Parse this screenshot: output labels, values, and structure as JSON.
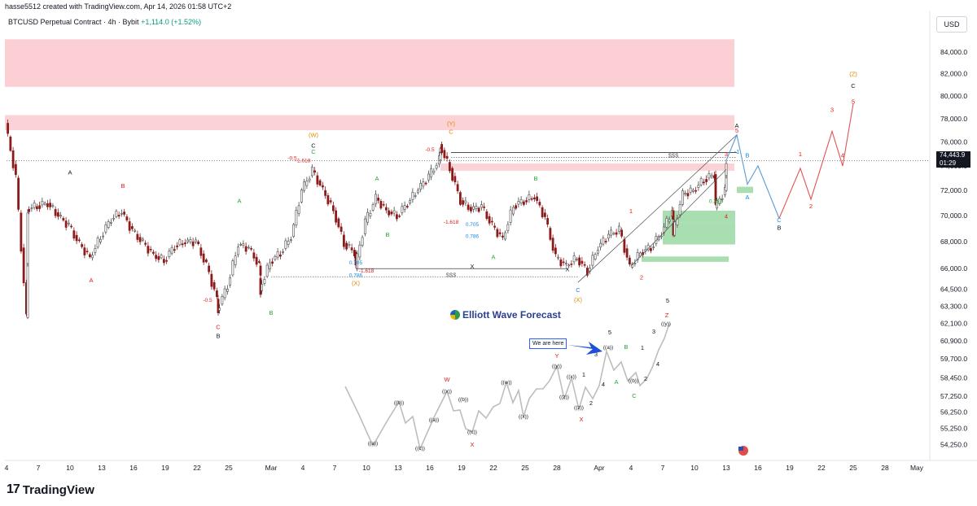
{
  "header": {
    "top_line": "hasse5512 created with TradingView.com, Apr 14, 2026 01:58 UTC+2",
    "symbol_title": "BTCUSD Perpetual Contract · 4h · Bybit",
    "change": "+1,114.0 (+1.52%)"
  },
  "currency_button": "USD",
  "branding": {
    "logo_mark": "17",
    "logo_text": "TradingView",
    "ewf_text": "Elliott Wave Forecast",
    "we_are_here": "We are here"
  },
  "price_tag": {
    "price": "74,443.9",
    "countdown": "01:29"
  },
  "colors": {
    "up": "#089981",
    "down": "#8b1a1a",
    "sell_zone": "#f7a8b0",
    "buy_zone": "#62c46f",
    "path_blue": "#5b9bd5",
    "path_red": "#e05555",
    "label_red": "#e01b1b",
    "label_green": "#27a534",
    "label_orange": "#e08a00",
    "label_blue": "#1e88e5"
  },
  "chart_data": {
    "type": "candlestick",
    "title": "BTCUSD Perpetual Contract · 4h · Bybit",
    "ylim": [
      53500,
      86000
    ],
    "y_scale": "log",
    "y_ticks": [
      "84,000.0",
      "82,000.0",
      "80,000.0",
      "78,000.0",
      "76,000.0",
      "74,000.0",
      "72,000.0",
      "70,000.0",
      "68,000.0",
      "66,000.0",
      "64,500.0",
      "63,300.0",
      "62,100.0",
      "60,900.0",
      "59,700.0",
      "58,450.0",
      "57,250.0",
      "56,250.0",
      "55,250.0",
      "54,250.0"
    ],
    "y_tick_values": [
      84000,
      82000,
      80000,
      78000,
      76000,
      74000,
      72000,
      70000,
      68000,
      66000,
      64500,
      63300,
      62100,
      60900,
      59700,
      58450,
      57250,
      56250,
      55250,
      54250
    ],
    "x_ticks": [
      "4",
      "7",
      "10",
      "13",
      "16",
      "19",
      "22",
      "25",
      "Mar",
      "4",
      "7",
      "10",
      "13",
      "16",
      "19",
      "22",
      "25",
      "28",
      "Apr",
      "4",
      "7",
      "10",
      "13",
      "16",
      "19",
      "22",
      "25",
      "28",
      "May"
    ],
    "x_tick_dates": [
      "2026-02-04",
      "2026-02-07",
      "2026-02-10",
      "2026-02-13",
      "2026-02-16",
      "2026-02-19",
      "2026-02-22",
      "2026-02-25",
      "2026-03-01",
      "2026-03-04",
      "2026-03-07",
      "2026-03-10",
      "2026-03-13",
      "2026-03-16",
      "2026-03-19",
      "2026-03-22",
      "2026-03-25",
      "2026-03-28",
      "2026-04-01",
      "2026-04-04",
      "2026-04-07",
      "2026-04-10",
      "2026-04-13",
      "2026-04-16",
      "2026-04-19",
      "2026-04-22",
      "2026-04-25",
      "2026-04-28",
      "2026-05-01"
    ],
    "price_path": [
      [
        "2026-02-04",
        77600
      ],
      [
        "2026-02-05",
        73000
      ],
      [
        "2026-02-06",
        62500
      ],
      [
        "2026-02-06",
        70500
      ],
      [
        "2026-02-07",
        70800
      ],
      [
        "2026-02-08",
        71000
      ],
      [
        "2026-02-09",
        70000
      ],
      [
        "2026-02-10",
        69200
      ],
      [
        "2026-02-11",
        67800
      ],
      [
        "2026-02-12",
        66800
      ],
      [
        "2026-02-13",
        68400
      ],
      [
        "2026-02-14",
        69800
      ],
      [
        "2026-02-15",
        70300
      ],
      [
        "2026-02-16",
        68800
      ],
      [
        "2026-02-17",
        67900
      ],
      [
        "2026-02-18",
        67000
      ],
      [
        "2026-02-19",
        66600
      ],
      [
        "2026-02-20",
        67700
      ],
      [
        "2026-02-21",
        68000
      ],
      [
        "2026-02-22",
        68000
      ],
      [
        "2026-02-23",
        66200
      ],
      [
        "2026-02-24",
        63800
      ],
      [
        "2026-02-24",
        63000
      ],
      [
        "2026-02-25",
        64800
      ],
      [
        "2026-02-26",
        67800
      ],
      [
        "2026-02-27",
        67500
      ],
      [
        "2026-02-28",
        66200
      ],
      [
        "2026-02-28",
        64400
      ],
      [
        "2026-03-01",
        66500
      ],
      [
        "2026-03-02",
        67200
      ],
      [
        "2026-03-03",
        68400
      ],
      [
        "2026-03-04",
        72000
      ],
      [
        "2026-03-05",
        73600
      ],
      [
        "2026-03-06",
        72000
      ],
      [
        "2026-03-07",
        70400
      ],
      [
        "2026-03-08",
        67900
      ],
      [
        "2026-03-09",
        67200
      ],
      [
        "2026-03-09",
        66000
      ],
      [
        "2026-03-10",
        69500
      ],
      [
        "2026-03-11",
        71400
      ],
      [
        "2026-03-12",
        70400
      ],
      [
        "2026-03-13",
        70000
      ],
      [
        "2026-03-14",
        71000
      ],
      [
        "2026-03-15",
        72100
      ],
      [
        "2026-03-16",
        73100
      ],
      [
        "2026-03-17",
        74500
      ],
      [
        "2026-03-17",
        75800
      ],
      [
        "2026-03-18",
        73800
      ],
      [
        "2026-03-19",
        71200
      ],
      [
        "2026-03-20",
        70500
      ],
      [
        "2026-03-21",
        70700
      ],
      [
        "2026-03-22",
        69200
      ],
      [
        "2026-03-23",
        68200
      ],
      [
        "2026-03-24",
        70800
      ],
      [
        "2026-03-25",
        71200
      ],
      [
        "2026-03-26",
        71500
      ],
      [
        "2026-03-27",
        69800
      ],
      [
        "2026-03-28",
        66800
      ],
      [
        "2026-03-29",
        66200
      ],
      [
        "2026-03-30",
        66800
      ],
      [
        "2026-03-31",
        65800
      ],
      [
        "2026-04-01",
        67600
      ],
      [
        "2026-04-02",
        68500
      ],
      [
        "2026-04-03",
        68900
      ],
      [
        "2026-04-04",
        66100
      ],
      [
        "2026-04-05",
        67200
      ],
      [
        "2026-04-06",
        67600
      ],
      [
        "2026-04-07",
        68700
      ],
      [
        "2026-04-08",
        70400
      ],
      [
        "2026-04-08",
        68500
      ],
      [
        "2026-04-09",
        71700
      ],
      [
        "2026-04-10",
        72000
      ],
      [
        "2026-04-11",
        72900
      ],
      [
        "2026-04-12",
        73300
      ],
      [
        "2026-04-12",
        70600
      ],
      [
        "2026-04-13",
        72000
      ],
      [
        "2026-04-13",
        74443.9
      ]
    ],
    "last_price": 74443.9,
    "zones": [
      {
        "kind": "sell",
        "from": 80800,
        "to": 85200
      },
      {
        "kind": "sell",
        "from": 77000,
        "to": 78300
      },
      {
        "kind": "sell",
        "from": 73600,
        "to": 74200
      },
      {
        "kind": "buy",
        "from": 67800,
        "to": 69500
      },
      {
        "kind": "buy",
        "from": 69500,
        "to": 70400
      },
      {
        "kind": "buy",
        "from": 66500,
        "to": 66900
      },
      {
        "kind": "buy",
        "from": 71800,
        "to": 72300
      }
    ],
    "projection_blue": [
      [
        "2026-04-13",
        74443.9
      ],
      [
        "2026-04-14",
        76600
      ],
      [
        "2026-04-15",
        72500
      ],
      [
        "2026-04-16",
        74000
      ],
      [
        "2026-04-18",
        69800
      ]
    ],
    "projection_red": [
      [
        "2026-04-18",
        69800
      ],
      [
        "2026-04-20",
        73800
      ],
      [
        "2026-04-21",
        71300
      ],
      [
        "2026-04-23",
        76900
      ],
      [
        "2026-04-24",
        74000
      ],
      [
        "2026-04-25",
        79300
      ]
    ],
    "labels": [
      {
        "text": "A",
        "color": "black",
        "date": "2026-02-10",
        "price": 73300
      },
      {
        "text": "B",
        "color": "red",
        "date": "2026-02-15",
        "price": 72200
      },
      {
        "text": "A",
        "color": "red",
        "date": "2026-02-12",
        "price": 65000
      },
      {
        "text": "-0.5",
        "color": "red",
        "date": "2026-02-23",
        "price": 63600
      },
      {
        "text": "C",
        "color": "red",
        "date": "2026-02-24",
        "price": 61700
      },
      {
        "text": "B",
        "color": "black",
        "date": "2026-02-24",
        "price": 61100
      },
      {
        "text": "A",
        "color": "green",
        "date": "2026-02-26",
        "price": 71000
      },
      {
        "text": "B",
        "color": "green",
        "date": "2026-03-01",
        "price": 62700
      },
      {
        "text": "(W)",
        "color": "orange",
        "date": "2026-03-05",
        "price": 76400
      },
      {
        "text": "C",
        "color": "black",
        "date": "2026-03-05",
        "price": 75500
      },
      {
        "text": "C",
        "color": "green",
        "date": "2026-03-05",
        "price": 75000
      },
      {
        "text": "-0.5",
        "color": "red",
        "date": "2026-03-03",
        "price": 74500
      },
      {
        "text": "-1.618",
        "color": "red",
        "date": "2026-03-04",
        "price": 74300
      },
      {
        "text": "A",
        "color": "green",
        "date": "2026-03-11",
        "price": 72800
      },
      {
        "text": "B",
        "color": "green",
        "date": "2026-03-12",
        "price": 68400
      },
      {
        "text": "0.705",
        "color": "blue",
        "date": "2026-03-09",
        "price": 66300
      },
      {
        "text": "-1.618",
        "color": "red",
        "date": "2026-03-10",
        "price": 65700
      },
      {
        "text": "0.786",
        "color": "blue",
        "date": "2026-03-09",
        "price": 65400
      },
      {
        "text": "(X)",
        "color": "orange",
        "date": "2026-03-09",
        "price": 64800
      },
      {
        "text": "(Y)",
        "color": "orange",
        "date": "2026-03-18",
        "price": 77400
      },
      {
        "text": "C",
        "color": "orange",
        "date": "2026-03-18",
        "price": 76700
      },
      {
        "text": "-0.5",
        "color": "red",
        "date": "2026-03-16",
        "price": 75200
      },
      {
        "text": "-1.618",
        "color": "red",
        "date": "2026-03-18",
        "price": 69400
      },
      {
        "text": "0.705",
        "color": "blue",
        "date": "2026-03-20",
        "price": 69200
      },
      {
        "text": "0.786",
        "color": "blue",
        "date": "2026-03-20",
        "price": 68300
      },
      {
        "text": "A",
        "color": "green",
        "date": "2026-03-22",
        "price": 66700
      },
      {
        "text": "B",
        "color": "green",
        "date": "2026-03-26",
        "price": 72800
      },
      {
        "text": "X",
        "color": "black",
        "date": "2026-03-20",
        "price": 66000
      },
      {
        "text": "X",
        "color": "black",
        "date": "2026-03-29",
        "price": 65800
      },
      {
        "text": "C",
        "color": "blue",
        "date": "2026-03-30",
        "price": 64300
      },
      {
        "text": "(X)",
        "color": "orange",
        "date": "2026-03-30",
        "price": 63600
      },
      {
        "text": "1",
        "color": "red",
        "date": "2026-04-04",
        "price": 70200
      },
      {
        "text": "2",
        "color": "red",
        "date": "2026-04-05",
        "price": 65200
      },
      {
        "text": "3",
        "color": "red",
        "date": "2026-04-13",
        "price": 74800
      },
      {
        "text": "4",
        "color": "red",
        "date": "2026-04-13",
        "price": 69800
      },
      {
        "text": "5",
        "color": "red",
        "date": "2026-04-14",
        "price": 76800
      },
      {
        "text": "-1",
        "color": "blue",
        "date": "2026-04-14",
        "price": 75000
      },
      {
        "text": "A",
        "color": "black",
        "date": "2026-04-14",
        "price": 77200
      },
      {
        "text": "B",
        "color": "blue",
        "date": "2026-04-15",
        "price": 74700
      },
      {
        "text": "A",
        "color": "blue",
        "date": "2026-04-15",
        "price": 71300
      },
      {
        "text": "C",
        "color": "blue",
        "date": "2026-04-18",
        "price": 69500
      },
      {
        "text": "B",
        "color": "black",
        "date": "2026-04-18",
        "price": 68900
      },
      {
        "text": "1",
        "color": "red",
        "date": "2026-04-20",
        "price": 74800
      },
      {
        "text": "2",
        "color": "red",
        "date": "2026-04-21",
        "price": 70600
      },
      {
        "text": "3",
        "color": "red",
        "date": "2026-04-23",
        "price": 78600
      },
      {
        "text": "4",
        "color": "red",
        "date": "2026-04-24",
        "price": 74700
      },
      {
        "text": "5",
        "color": "red",
        "date": "2026-04-25",
        "price": 79300
      },
      {
        "text": "(Z)",
        "color": "orange",
        "date": "2026-04-25",
        "price": 81800
      },
      {
        "text": "C",
        "color": "black",
        "date": "2026-04-25",
        "price": 80700
      },
      {
        "text": "$$$",
        "color": "gray",
        "date": "2026-04-08",
        "price": 74700
      },
      {
        "text": "$$$",
        "color": "gray",
        "date": "2026-03-18",
        "price": 65400
      },
      {
        "text": "0.382",
        "color": "green",
        "date": "2026-04-12",
        "price": 71000
      }
    ],
    "levels": [
      {
        "from": "2026-03-18",
        "to": "2026-04-14",
        "price": 74700,
        "style": "dotted"
      },
      {
        "from": "2026-03-18",
        "to": "2026-04-14",
        "price": 75100,
        "style": "solid"
      },
      {
        "from": "2026-03-09",
        "to": "2026-03-29",
        "price": 66000,
        "style": "solid"
      },
      {
        "from": "2026-03-01",
        "to": "2026-03-30",
        "price": 65400,
        "style": "dotted"
      }
    ],
    "fractal": {
      "points": [
        [
          424,
          475
        ],
        [
          441,
          510
        ],
        [
          458,
          548
        ],
        [
          474,
          520
        ],
        [
          490,
          494
        ],
        [
          498,
          520
        ],
        [
          507,
          512
        ],
        [
          516,
          552
        ],
        [
          533,
          513
        ],
        [
          549,
          481
        ],
        [
          557,
          505
        ],
        [
          565,
          504
        ],
        [
          572,
          527
        ],
        [
          580,
          531
        ],
        [
          588,
          505
        ],
        [
          597,
          514
        ],
        [
          606,
          500
        ],
        [
          614,
          496
        ],
        [
          622,
          470
        ],
        [
          630,
          495
        ],
        [
          637,
          480
        ],
        [
          643,
          512
        ],
        [
          650,
          490
        ],
        [
          659,
          478
        ],
        [
          667,
          478
        ],
        [
          675,
          468
        ],
        [
          684,
          450
        ],
        [
          693,
          490
        ],
        [
          702,
          465
        ],
        [
          711,
          503
        ],
        [
          719,
          476
        ],
        [
          728,
          490
        ],
        [
          736,
          474
        ],
        [
          745,
          432
        ],
        [
          754,
          455
        ],
        [
          763,
          445
        ],
        [
          771,
          468
        ],
        [
          781,
          458
        ],
        [
          786,
          474
        ],
        [
          794,
          466
        ],
        [
          801,
          452
        ],
        [
          809,
          430
        ],
        [
          816,
          416
        ],
        [
          822,
          398
        ]
      ],
      "labels": [
        {
          "text": "((a))",
          "x": 458,
          "y": 547
        },
        {
          "text": "((b))",
          "x": 490,
          "y": 497
        },
        {
          "text": "((c))",
          "x": 516,
          "y": 553
        },
        {
          "text": "((x))",
          "x": 549,
          "y": 483
        },
        {
          "text": "((a))",
          "x": 533,
          "y": 518
        },
        {
          "text": "((b))",
          "x": 569,
          "y": 493
        },
        {
          "text": "((c))",
          "x": 580,
          "y": 533
        },
        {
          "text": "W",
          "x": 549,
          "y": 469
        },
        {
          "text": "X",
          "x": 580,
          "y": 549
        },
        {
          "text": "((w))",
          "x": 622,
          "y": 472
        },
        {
          "text": "((x))",
          "x": 643,
          "y": 514
        },
        {
          "text": "((y))",
          "x": 684,
          "y": 452
        },
        {
          "text": "((x))",
          "x": 702,
          "y": 465
        },
        {
          "text": "((z))",
          "x": 693,
          "y": 490
        },
        {
          "text": "((z))",
          "x": 711,
          "y": 503
        },
        {
          "text": "Y",
          "x": 684,
          "y": 440
        },
        {
          "text": "X",
          "x": 714,
          "y": 518
        },
        {
          "text": "1",
          "x": 717,
          "y": 463
        },
        {
          "text": "2",
          "x": 726,
          "y": 498
        },
        {
          "text": "3",
          "x": 732,
          "y": 438
        },
        {
          "text": "4",
          "x": 741,
          "y": 475
        },
        {
          "text": "5",
          "x": 749,
          "y": 411
        },
        {
          "text": "((a))",
          "x": 747,
          "y": 429
        },
        {
          "text": "A",
          "x": 757,
          "y": 472
        },
        {
          "text": "B",
          "x": 769,
          "y": 429
        },
        {
          "text": "C",
          "x": 779,
          "y": 489
        },
        {
          "text": "((b))",
          "x": 778,
          "y": 470
        },
        {
          "text": "1",
          "x": 789,
          "y": 430
        },
        {
          "text": "2",
          "x": 793,
          "y": 468
        },
        {
          "text": "3",
          "x": 803,
          "y": 410
        },
        {
          "text": "4",
          "x": 808,
          "y": 450
        },
        {
          "text": "5",
          "x": 820,
          "y": 372
        },
        {
          "text": "Z",
          "x": 819,
          "y": 390
        },
        {
          "text": "((y))",
          "x": 818,
          "y": 400
        }
      ]
    }
  }
}
